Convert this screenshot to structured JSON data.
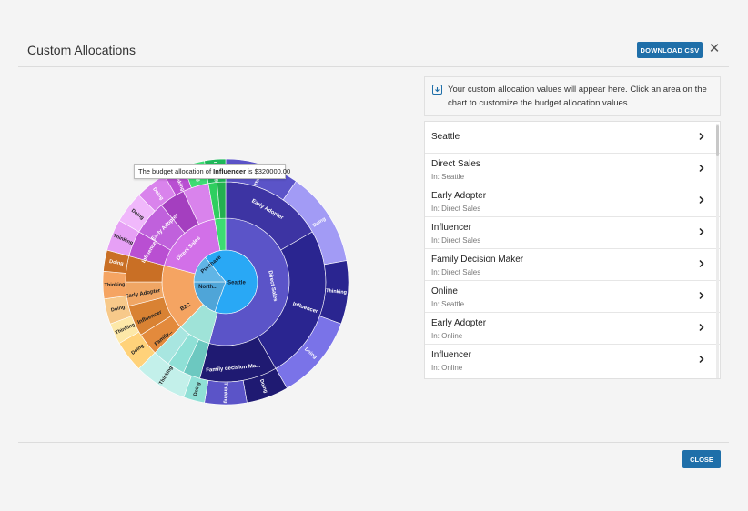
{
  "dialog": {
    "title": "Custom Allocations",
    "download_label": "DOWNLOAD CSV",
    "close_label": "CLOSE",
    "close_icon": "✕"
  },
  "info": {
    "text": "Your custom allocation values will appear here. Click an area on the chart to customize the budget allocation values."
  },
  "tooltip": {
    "prefix": "The budget allocation of ",
    "name": "Influencer",
    "suffix": " is $320000.00"
  },
  "allocations": [
    {
      "label": "Seattle",
      "sub": ""
    },
    {
      "label": "Direct Sales",
      "sub": "In: Seattle"
    },
    {
      "label": "Early Adopter",
      "sub": "In: Direct Sales"
    },
    {
      "label": "Influencer",
      "sub": "In: Direct Sales"
    },
    {
      "label": "Family Decision Maker",
      "sub": "In: Direct Sales"
    },
    {
      "label": "Online",
      "sub": "In: Seattle"
    },
    {
      "label": "Early Adopter",
      "sub": "In: Online"
    },
    {
      "label": "Influencer",
      "sub": "In: Online"
    }
  ],
  "chart_data": {
    "type": "sunburst",
    "center_labels": [
      "Seattle",
      "North...",
      "Purchase"
    ],
    "ring2_labels": [
      "Direct Sales",
      "B2C",
      "Direct Sales"
    ],
    "ring3_labels": [
      "Early Adopter",
      "Influencer",
      "Family decision Ma...",
      "Family...",
      "Influencer",
      "Early Adopter",
      "Influencer",
      "Early Adopter",
      "Family...",
      "Family...",
      "Influencer",
      "Early Adopter",
      "Influencer",
      "Early Adopter"
    ],
    "ring4_labels": [
      "Thinking",
      "Doing",
      "Thinking",
      "Doing",
      "Doing",
      "Thinking",
      "Doing",
      "Thinking",
      "Doing",
      "Thinking",
      "Doing",
      "Thinking",
      "Doing",
      "Thinking",
      "Doing",
      "Doing",
      "Thinking",
      "Doing",
      "Thinking"
    ],
    "colors": {
      "seattle": "#29a8f5",
      "purple_dark": "#3d34a3",
      "purple_mid": "#5b54c8",
      "purple_light": "#a29bf5",
      "orange": "#f5a462",
      "magenta": "#d270e8",
      "green": "#3ddc73",
      "teal": "#8fe0d6"
    }
  }
}
